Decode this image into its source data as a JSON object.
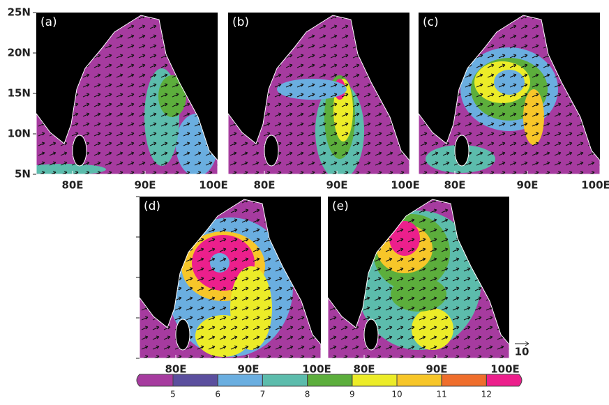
{
  "panels": [
    {
      "label": "(a)"
    },
    {
      "label": "(b)"
    },
    {
      "label": "(c)"
    },
    {
      "label": "(d)"
    },
    {
      "label": "(e)"
    }
  ],
  "lat_ticks": [
    "25N",
    "20N",
    "15N",
    "10N",
    "5N"
  ],
  "lon_ticks": [
    "80E",
    "90E",
    "100E"
  ],
  "colorbar": {
    "ticks": [
      5,
      6,
      7,
      8,
      9,
      10,
      11,
      12
    ],
    "colors": [
      "#a63b9f",
      "#5b4f9e",
      "#6aaee0",
      "#5cbcac",
      "#5cae3c",
      "#ecec28",
      "#f7c629",
      "#ef6e2c",
      "#ec1f8c"
    ]
  },
  "vector_reference": {
    "label": "10"
  }
}
